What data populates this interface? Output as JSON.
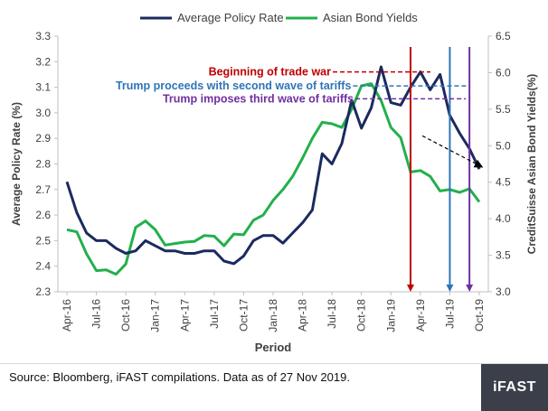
{
  "chart_data": {
    "type": "line",
    "legend_position": "top",
    "xlabel": "Period",
    "ylabel_left": "Average Policy Rate (%)",
    "ylabel_right": "CreditSuisse Asian Bond Yields(%)",
    "ylim_left": [
      2.3,
      3.3
    ],
    "ylim_right": [
      3.0,
      6.5
    ],
    "yticks_left": [
      "2.3",
      "2.4",
      "2.5",
      "2.6",
      "2.7",
      "2.8",
      "2.9",
      "3.0",
      "3.1",
      "3.2",
      "3.3"
    ],
    "yticks_right": [
      "3.0",
      "3.5",
      "4.0",
      "4.5",
      "5.0",
      "5.5",
      "6.0",
      "6.5"
    ],
    "x_ticks": [
      "Apr-16",
      "Jul-16",
      "Oct-16",
      "Jan-17",
      "Apr-17",
      "Jul-17",
      "Oct-17",
      "Jan-18",
      "Apr-18",
      "Jul-18",
      "Oct-18",
      "Jan-19",
      "Apr-19",
      "Jul-19",
      "Oct-19"
    ],
    "x_tick_index": [
      0,
      3,
      6,
      9,
      12,
      15,
      18,
      21,
      24,
      27,
      30,
      33,
      36,
      39,
      42
    ],
    "grid": false,
    "series": [
      {
        "name": "Average Policy Rate",
        "axis": "left",
        "color": "#1b2a5e",
        "values": [
          2.73,
          2.61,
          2.53,
          2.5,
          2.5,
          2.47,
          2.45,
          2.46,
          2.5,
          2.48,
          2.46,
          2.46,
          2.45,
          2.45,
          2.46,
          2.46,
          2.42,
          2.41,
          2.44,
          2.5,
          2.52,
          2.52,
          2.49,
          2.53,
          2.57,
          2.62,
          2.84,
          2.8,
          2.88,
          3.05,
          2.94,
          3.02,
          3.18,
          3.04,
          3.03,
          3.1,
          3.16,
          3.09,
          3.15,
          2.99,
          2.92,
          2.86,
          2.78
        ]
      },
      {
        "name": "Asian Bond Yields",
        "axis": "right",
        "color": "#22b04b",
        "values": [
          3.85,
          3.82,
          3.52,
          3.29,
          3.3,
          3.24,
          3.38,
          3.88,
          3.97,
          3.85,
          3.64,
          3.66,
          3.68,
          3.69,
          3.77,
          3.76,
          3.63,
          3.79,
          3.78,
          3.98,
          4.05,
          4.25,
          4.4,
          4.58,
          4.83,
          5.1,
          5.32,
          5.3,
          5.25,
          5.5,
          5.82,
          5.85,
          5.62,
          5.25,
          5.11,
          4.64,
          4.66,
          4.58,
          4.38,
          4.4,
          4.36,
          4.41,
          4.23
        ]
      }
    ],
    "annotations": [
      {
        "text": "Beginning of trade war",
        "color": "#c00000",
        "x_index": 35,
        "label_y": 3.16
      },
      {
        "text": "Trump proceeds with second wave of tariffs",
        "color": "#2e75b6",
        "x_index": 39,
        "label_y": 3.105
      },
      {
        "text": "Trump imposes third wave of tariffs",
        "color": "#7030a0",
        "x_index": 41,
        "label_y": 3.055
      }
    ],
    "trend_arrow": {
      "from": {
        "x_index": 36.2,
        "y_left": 2.91
      },
      "to": {
        "x_index": 42.2,
        "y_left": 2.79
      }
    }
  },
  "footer": {
    "source": "Source: Bloomberg, iFAST compilations. Data as of 27 Nov 2019.",
    "brand": "iFAST"
  }
}
